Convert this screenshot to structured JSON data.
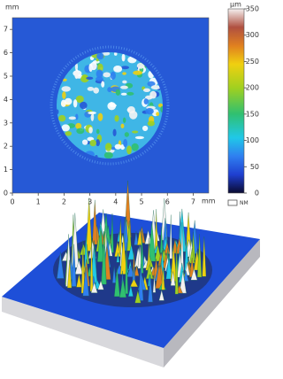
{
  "chart_data": {
    "type": "heatmap",
    "x_unit": "mm",
    "y_unit": "mm",
    "colorbar_unit": "µm",
    "legend_box_label": "NM",
    "xlim": [
      0,
      7.6
    ],
    "ylim": [
      0,
      7.5
    ],
    "xticks": [
      0,
      1,
      2,
      3,
      4,
      5,
      6,
      7
    ],
    "yticks": [
      0,
      1,
      2,
      3,
      4,
      5,
      6,
      7
    ],
    "zlim": [
      0,
      350
    ],
    "zticks": [
      0,
      50,
      100,
      150,
      200,
      250,
      300,
      350
    ]
  }
}
